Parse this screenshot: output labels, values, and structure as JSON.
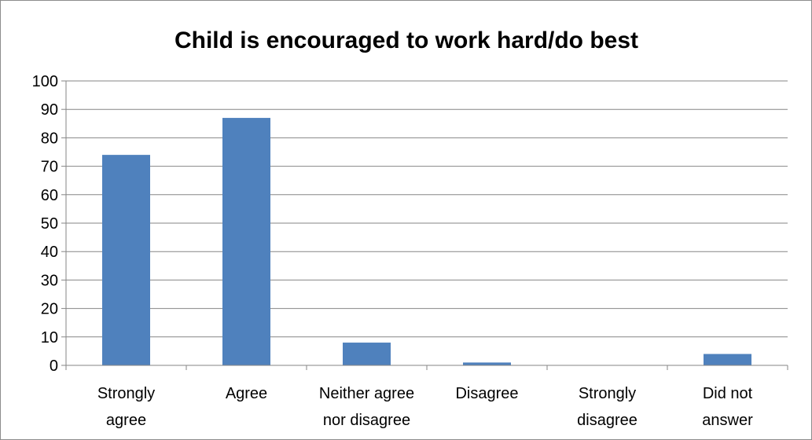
{
  "chart_data": {
    "type": "bar",
    "title": "Child is encouraged to work hard/do best",
    "xlabel": "",
    "ylabel": "",
    "categories": [
      [
        "Strongly",
        "agree"
      ],
      [
        "Agree"
      ],
      [
        "Neither agree",
        "nor disagree"
      ],
      [
        "Disagree"
      ],
      [
        "Strongly",
        "disagree"
      ],
      [
        "Did not",
        "answer"
      ]
    ],
    "values": [
      74,
      87,
      8,
      1,
      0,
      4
    ],
    "ylim": [
      0,
      100
    ],
    "yticks": [
      "0",
      "10",
      "20",
      "30",
      "40",
      "50",
      "60",
      "70",
      "80",
      "90",
      "100"
    ],
    "grid": true,
    "legend": "none",
    "bar_color": "#4f81bd",
    "gridline_color": "#868686"
  }
}
